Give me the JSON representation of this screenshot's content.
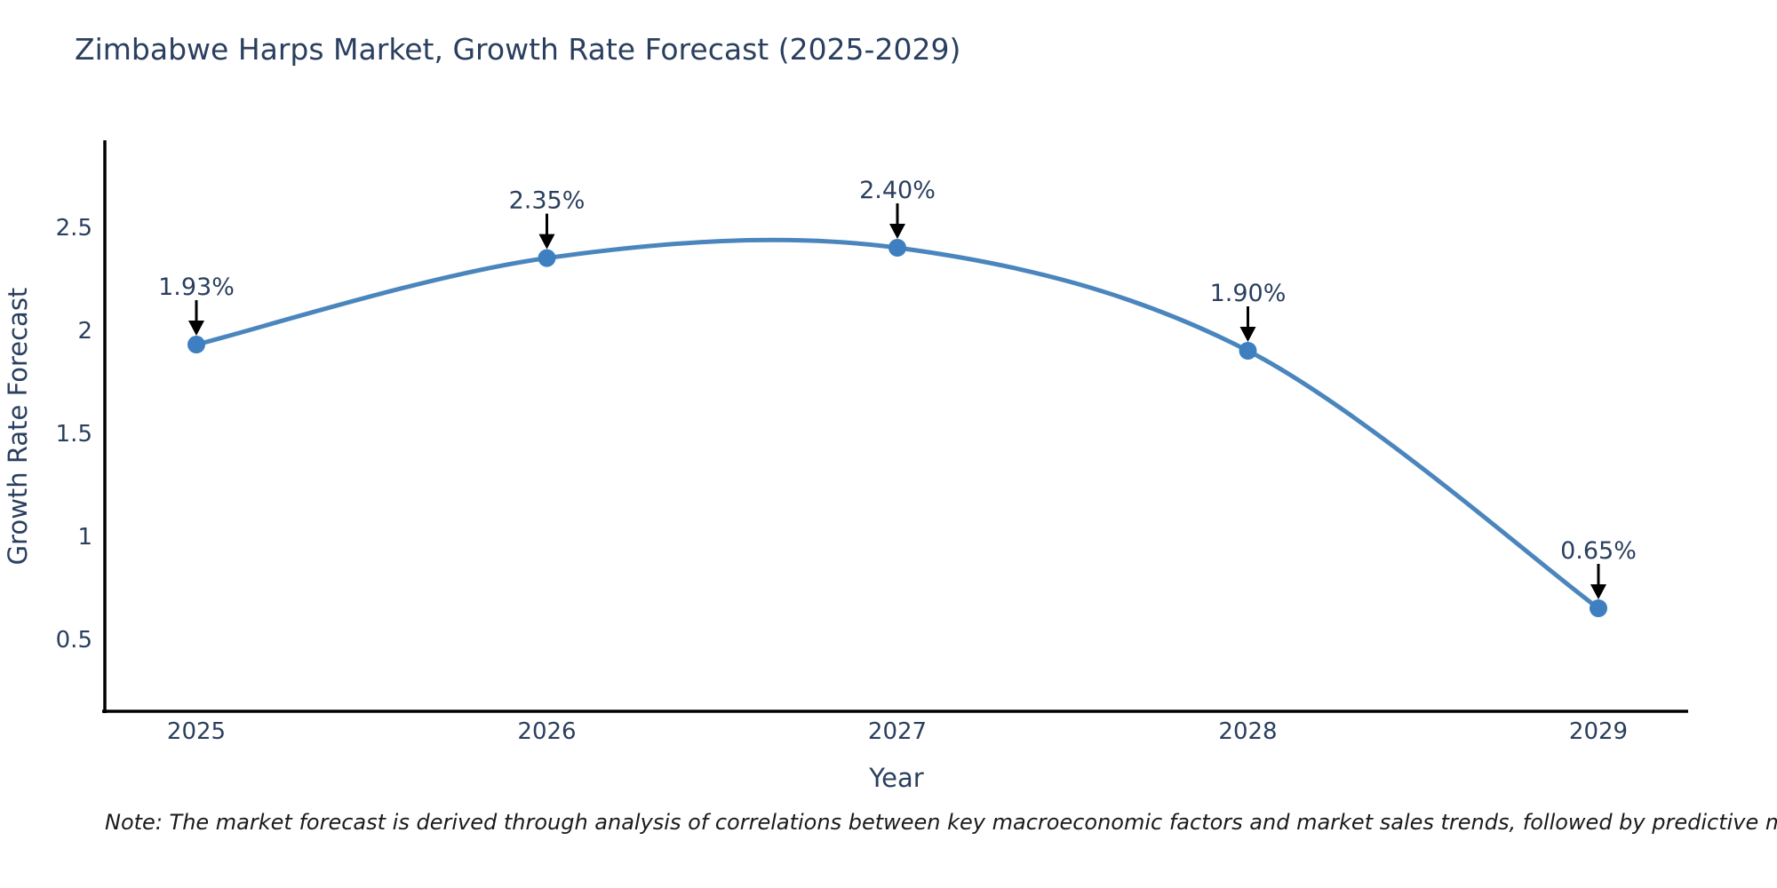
{
  "title": "Zimbabwe Harps Market, Growth Rate Forecast (2025-2029)",
  "note": "Note: The market forecast is derived through analysis of correlations between key macroeconomic factors and market sales trends, followed by predictive modeling to project future sales",
  "colors": {
    "line": "#4a86bd",
    "marker": "#3d7fc0",
    "axis_line": "#000000",
    "tick_text": "#2a3f5f",
    "title_text": "#2a3f5f",
    "annotation_arrow": "#000000",
    "note_text": "#1a1a1a",
    "background": "#ffffff"
  },
  "chart_data": {
    "type": "line",
    "title": "Zimbabwe Harps Market, Growth Rate Forecast (2025-2029)",
    "xlabel": "Year",
    "ylabel": "Growth Rate Forecast",
    "x": [
      2025,
      2026,
      2027,
      2028,
      2029
    ],
    "values": [
      1.93,
      2.35,
      2.4,
      1.9,
      0.65
    ],
    "point_labels": [
      "1.93%",
      "2.35%",
      "2.40%",
      "1.90%",
      "0.65%"
    ],
    "x_tick_labels": [
      "2025",
      "2026",
      "2027",
      "2028",
      "2029"
    ],
    "y_ticks": [
      0.5,
      1,
      1.5,
      2,
      2.5
    ],
    "y_tick_labels": [
      "0.5",
      "1",
      "1.5",
      "2",
      "2.5"
    ],
    "ylim": [
      0.15,
      2.93
    ],
    "line_shape": "spline",
    "grid": false,
    "legend_position": "none",
    "annotations": "black arrows pointing from each percentage label down to its data point"
  }
}
